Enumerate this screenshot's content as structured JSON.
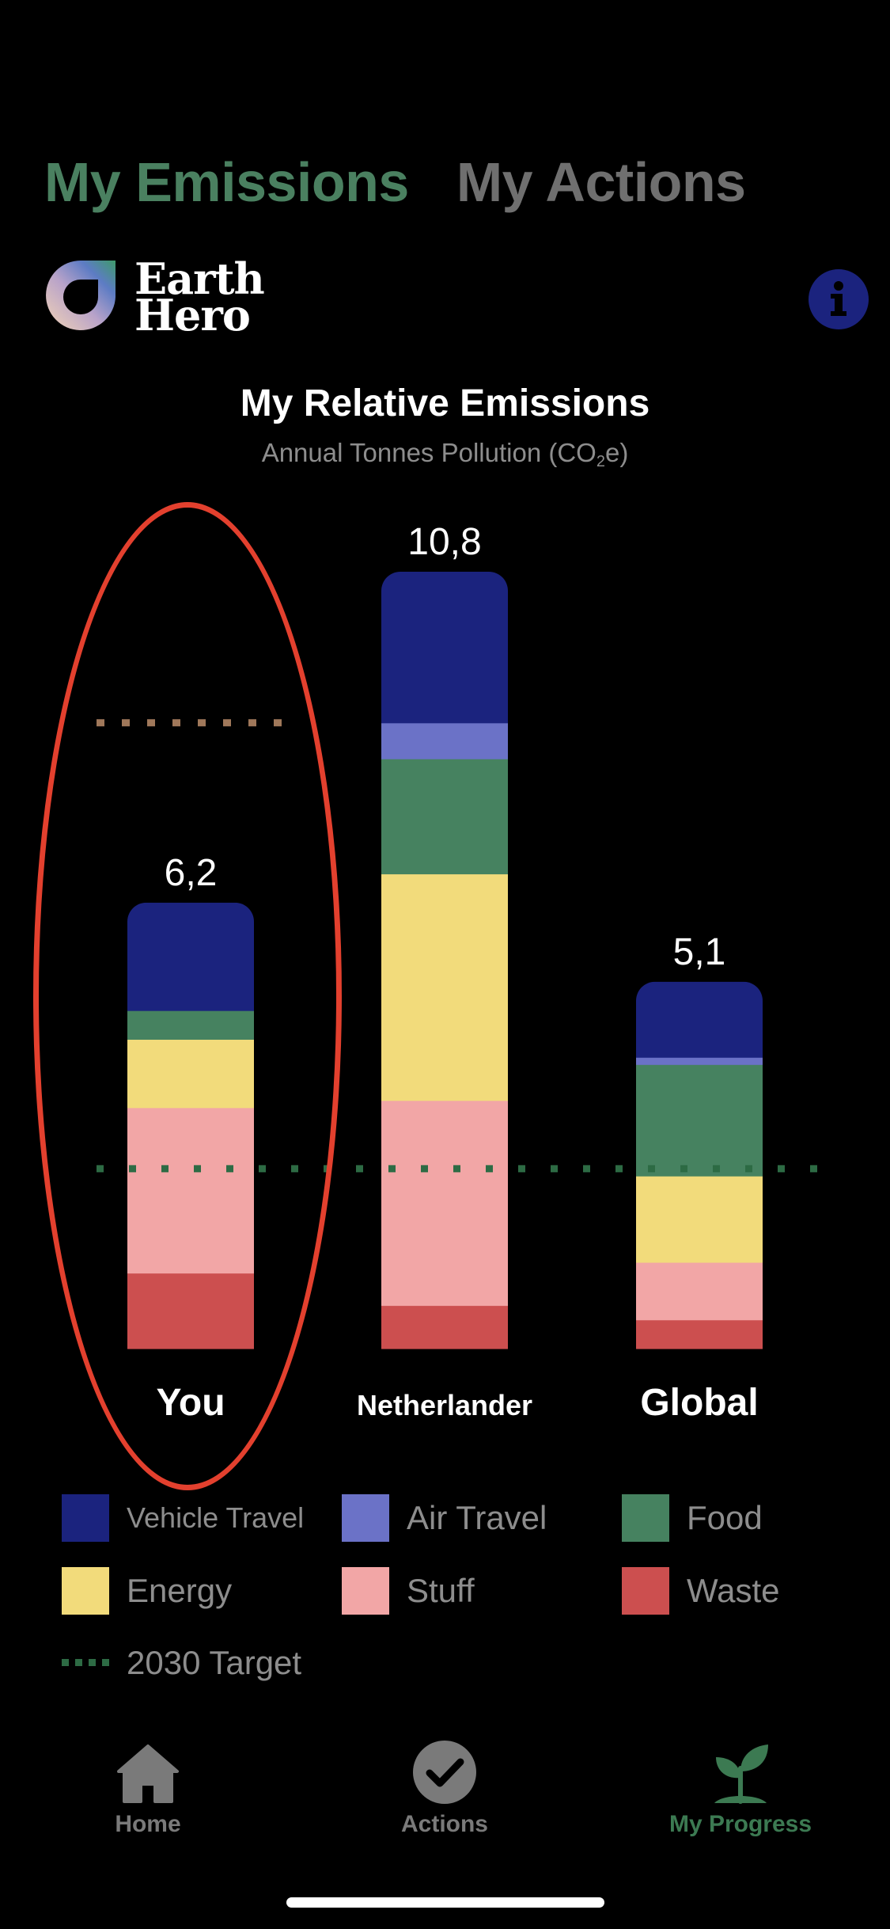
{
  "tabs": [
    {
      "label": "My Emissions",
      "active": true
    },
    {
      "label": "My Actions",
      "active": false
    }
  ],
  "logo": {
    "line1": "Earth",
    "line2": "Hero"
  },
  "info_button_icon": "info-icon",
  "chart_data": {
    "type": "bar",
    "stacked": true,
    "title": "My Relative Emissions",
    "subtitle_prefix": "Annual Tonnes Pollution (CO",
    "subtitle_sub": "2",
    "subtitle_suffix": "e)",
    "categories": [
      "You",
      "Netherlander",
      "Global"
    ],
    "totals": [
      6.2,
      10.8,
      5.1
    ],
    "total_labels": [
      "6,2",
      "10,8",
      "5,1"
    ],
    "ylim": [
      0,
      10.8
    ],
    "series": [
      {
        "name": "Waste",
        "color": "#cc4f4f",
        "values": [
          1.05,
          0.6,
          0.4
        ]
      },
      {
        "name": "Stuff",
        "color": "#f2a6a6",
        "values": [
          2.3,
          2.85,
          0.8
        ]
      },
      {
        "name": "Energy",
        "color": "#f2db7b",
        "values": [
          0.95,
          3.15,
          1.2
        ]
      },
      {
        "name": "Food",
        "color": "#468260",
        "values": [
          0.4,
          1.6,
          1.55
        ]
      },
      {
        "name": "Air Travel",
        "color": "#6b72c7",
        "values": [
          0.0,
          0.5,
          0.1
        ]
      },
      {
        "name": "Vehicle Travel",
        "color": "#1b237e",
        "values": [
          1.5,
          2.1,
          1.05
        ]
      }
    ],
    "reference_lines": [
      {
        "name": "2030 Target",
        "value": 2.5,
        "color": "#2d6b44",
        "style": "dotted",
        "scope": "all"
      },
      {
        "name": "personal target",
        "value": 8.7,
        "color": "#a0785a",
        "style": "dotted",
        "scope": "You"
      }
    ],
    "grid": false
  },
  "legend": [
    {
      "label": "Vehicle Travel",
      "color": "#1b237e"
    },
    {
      "label": "Air Travel",
      "color": "#6b72c7"
    },
    {
      "label": "Food",
      "color": "#468260"
    },
    {
      "label": "Energy",
      "color": "#f2db7b"
    },
    {
      "label": "Stuff",
      "color": "#f2a6a6"
    },
    {
      "label": "Waste",
      "color": "#cc4f4f"
    }
  ],
  "legend_target": {
    "label": "2030 Target",
    "color": "#2d6b44"
  },
  "nav": [
    {
      "label": "Home",
      "icon": "home-icon",
      "active": false
    },
    {
      "label": "Actions",
      "icon": "checkmark-circle-icon",
      "active": false
    },
    {
      "label": "My Progress",
      "icon": "plant-icon",
      "active": true
    }
  ]
}
